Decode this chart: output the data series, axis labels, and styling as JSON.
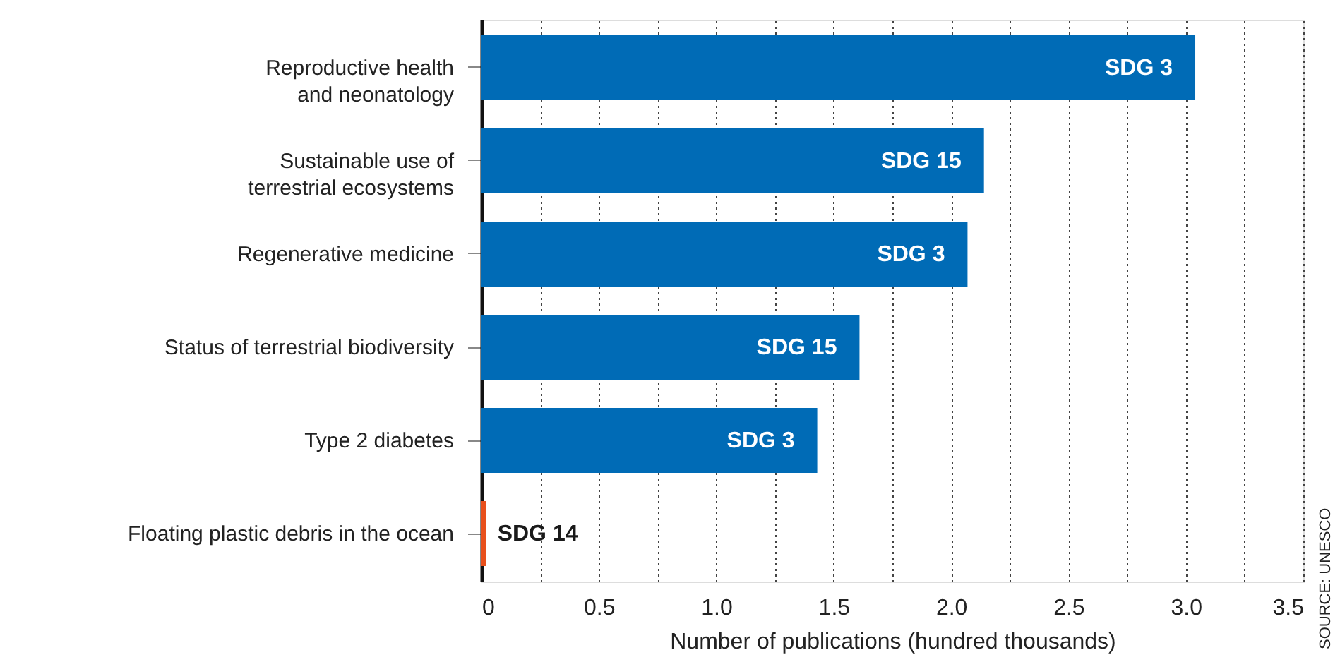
{
  "chart_data": {
    "type": "bar",
    "orientation": "horizontal",
    "xlabel": "Number of publications (hundred thousands)",
    "categories": [
      "Reproductive health\nand neonatology",
      "Sustainable use of\nterrestrial ecosystems",
      "Regenerative medicine",
      "Status of terrestrial biodiversity",
      "Type 2 diabetes",
      "Floating plastic debris in the ocean"
    ],
    "values": [
      3.04,
      2.14,
      2.07,
      1.61,
      1.43,
      0.02
    ],
    "colors": [
      "#006bb6",
      "#006bb6",
      "#006bb6",
      "#006bb6",
      "#006bb6",
      "#e8501c"
    ],
    "xlim": [
      0,
      3.5
    ],
    "xticks": [
      0,
      {
        "value": 0.25,
        "label": null
      },
      0.5,
      {
        "value": 0.75,
        "label": null
      },
      {
        "value": 1,
        "label": "1.0"
      },
      {
        "value": 1.25,
        "label": null
      },
      1.5,
      {
        "value": 1.75,
        "label": null
      },
      {
        "value": 2,
        "label": "2.0"
      },
      {
        "value": 2.25,
        "label": null
      },
      2.5,
      {
        "value": 2.75,
        "label": null
      },
      {
        "value": 3,
        "label": "3.0"
      },
      {
        "value": 3.25,
        "label": null
      },
      3.5
    ],
    "grid": "x",
    "annotations": [
      {
        "text": "SDG 3",
        "x": 3.04,
        "y": "Reproductive health\nand neonatology"
      },
      {
        "text": "SDG 15",
        "x": 2.14,
        "y": "Sustainable use of\nterrestrial ecosystems"
      },
      {
        "text": "SDG 3",
        "x": 2.07,
        "y": "Regenerative medicine"
      },
      {
        "text": "SDG 15",
        "x": 1.61,
        "y": "Status of terrestrial biodiversity"
      },
      {
        "text": "SDG 3",
        "x": 1.43,
        "y": "Type 2 diabetes"
      },
      {
        "text": "SDG 14",
        "x": 0.02,
        "y": "Floating plastic debris in the ocean"
      },
      "SOURCE: UNESCO"
    ]
  }
}
